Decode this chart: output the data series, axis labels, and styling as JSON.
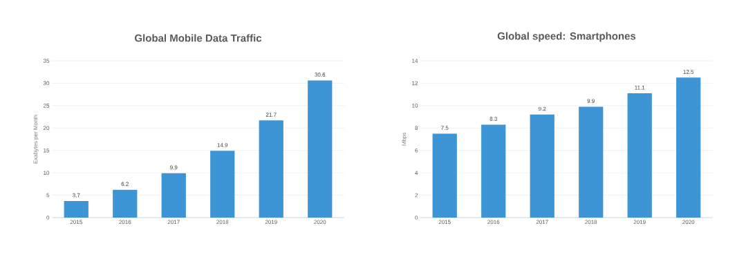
{
  "chart_data": [
    {
      "type": "bar",
      "title": "Global Mobile Data Traffic",
      "ylabel": "Exabytes per Month",
      "categories": [
        "2015",
        "2016",
        "2017",
        "2018",
        "2019",
        "2020"
      ],
      "values": [
        3.7,
        6.2,
        9.9,
        14.9,
        21.7,
        30.6
      ],
      "color": "#3e95d6",
      "ylim": [
        0,
        35
      ],
      "yticks": [
        0,
        5,
        10,
        15,
        20,
        25,
        30,
        35
      ],
      "grid": "y",
      "data_labels": true
    },
    {
      "type": "bar",
      "title": "Global speed: Smartphones",
      "ylabel": "Mbps",
      "categories": [
        "2015",
        "2016",
        "2017",
        "2018",
        "2019",
        "2020"
      ],
      "values": [
        7.5,
        8.3,
        9.2,
        9.9,
        11.1,
        12.5
      ],
      "color": "#3e95d6",
      "ylim": [
        0,
        14
      ],
      "yticks": [
        0,
        2,
        4,
        6,
        8,
        10,
        12,
        14
      ],
      "grid": "y",
      "data_labels": true
    }
  ]
}
